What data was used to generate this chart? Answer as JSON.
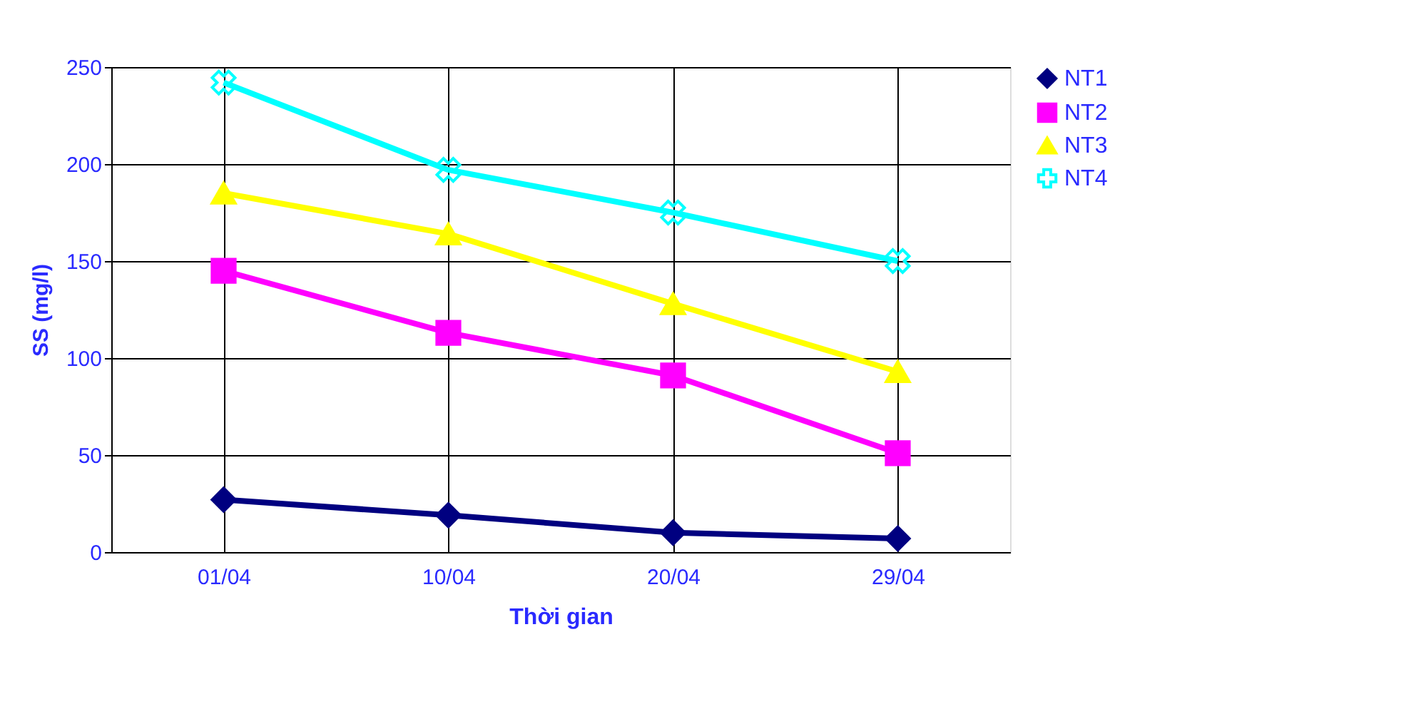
{
  "chart_data": {
    "type": "line",
    "xlabel": "Thời gian",
    "ylabel": "SS (mg/l)",
    "categories": [
      "01/04",
      "10/04",
      "20/04",
      "29/04"
    ],
    "series": [
      {
        "name": "NT1",
        "color": "#000080",
        "marker": "diamond",
        "values": [
          27,
          19,
          10,
          7
        ]
      },
      {
        "name": "NT2",
        "color": "#ff00ff",
        "marker": "square",
        "values": [
          145,
          113,
          91,
          51
        ]
      },
      {
        "name": "NT3",
        "color": "#ffff00",
        "marker": "triangle",
        "values": [
          185,
          164,
          128,
          93
        ]
      },
      {
        "name": "NT4",
        "color": "#00ffff",
        "marker": "cross",
        "values": [
          242,
          197,
          175,
          150
        ]
      }
    ],
    "ylim": [
      0,
      250
    ],
    "yticks": [
      0,
      50,
      100,
      150,
      200,
      250
    ],
    "grid": true,
    "legend": "right",
    "line_style": "solid"
  }
}
